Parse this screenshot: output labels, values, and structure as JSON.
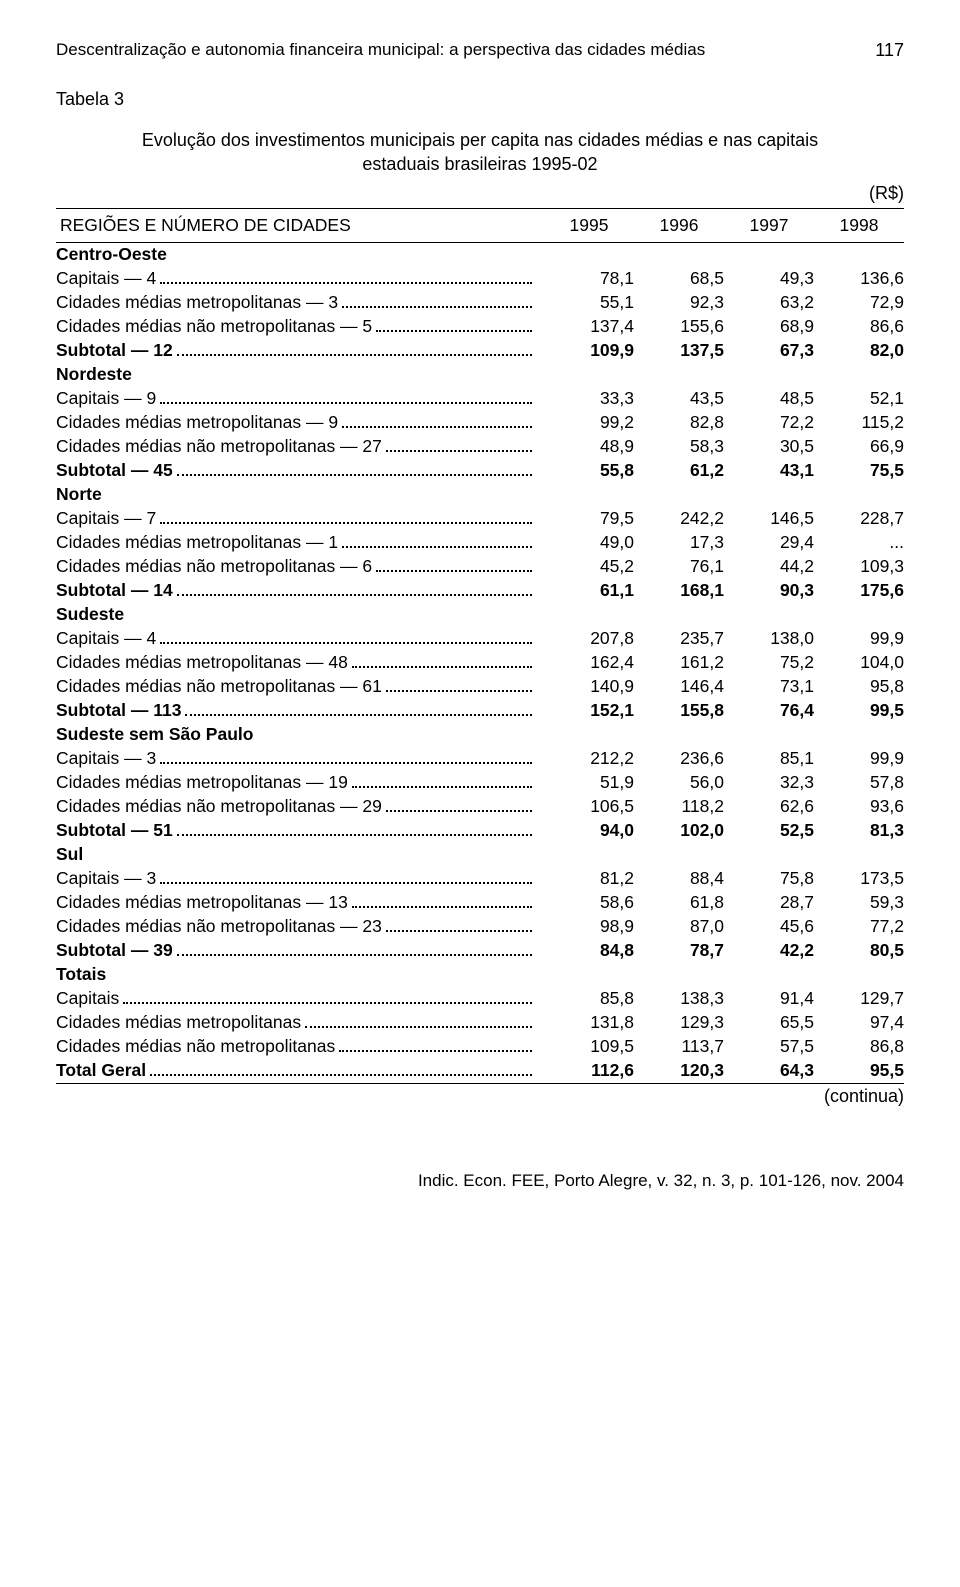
{
  "header": {
    "title": "Descentralização e autonomia financeira municipal: a perspectiva das cidades médias",
    "page_number": "117"
  },
  "table": {
    "label": "Tabela 3",
    "caption_line1": "Evolução dos investimentos municipais per capita nas cidades médias e  nas capitais",
    "caption_line2": "estaduais brasileiras 1995-02",
    "currency": "(R$)",
    "head_label": "REGIÕES E NÚMERO DE CIDADES",
    "years": [
      "1995",
      "1996",
      "1997",
      "1998"
    ],
    "col_widths": {
      "label": "auto",
      "num": "90px"
    },
    "font_size": 17.5,
    "text_color": "#000000",
    "background_color": "#ffffff",
    "rows": [
      {
        "type": "section",
        "label": "Centro-Oeste"
      },
      {
        "type": "data",
        "label": "Capitais — 4",
        "vals": [
          "78,1",
          "68,5",
          "49,3",
          "136,6"
        ]
      },
      {
        "type": "data",
        "label": "Cidades médias metropolitanas — 3",
        "vals": [
          "55,1",
          "92,3",
          "63,2",
          "72,9"
        ]
      },
      {
        "type": "data",
        "label": "Cidades médias não metropolitanas — 5",
        "vals": [
          "137,4",
          "155,6",
          "68,9",
          "86,6"
        ]
      },
      {
        "type": "bold",
        "label": "Subtotal — 12",
        "vals": [
          "109,9",
          "137,5",
          "67,3",
          "82,0"
        ]
      },
      {
        "type": "section",
        "label": "Nordeste"
      },
      {
        "type": "data",
        "label": "Capitais — 9",
        "vals": [
          "33,3",
          "43,5",
          "48,5",
          "52,1"
        ]
      },
      {
        "type": "data",
        "label": "Cidades médias metropolitanas — 9",
        "vals": [
          "99,2",
          "82,8",
          "72,2",
          "115,2"
        ]
      },
      {
        "type": "data",
        "label": "Cidades médias não metropolitanas — 27",
        "vals": [
          "48,9",
          "58,3",
          "30,5",
          "66,9"
        ]
      },
      {
        "type": "bold",
        "label": "Subtotal — 45",
        "vals": [
          "55,8",
          "61,2",
          "43,1",
          "75,5"
        ]
      },
      {
        "type": "section",
        "label": "Norte"
      },
      {
        "type": "data",
        "label": "Capitais — 7",
        "vals": [
          "79,5",
          "242,2",
          "146,5",
          "228,7"
        ]
      },
      {
        "type": "data",
        "label": "Cidades médias metropolitanas — 1",
        "vals": [
          "49,0",
          "17,3",
          "29,4",
          "..."
        ]
      },
      {
        "type": "data",
        "label": "Cidades médias não metropolitanas — 6",
        "vals": [
          "45,2",
          "76,1",
          "44,2",
          "109,3"
        ]
      },
      {
        "type": "bold",
        "label": "Subtotal — 14",
        "vals": [
          "61,1",
          "168,1",
          "90,3",
          "175,6"
        ]
      },
      {
        "type": "section",
        "label": "Sudeste"
      },
      {
        "type": "data",
        "label": "Capitais — 4",
        "vals": [
          "207,8",
          "235,7",
          "138,0",
          "99,9"
        ]
      },
      {
        "type": "data",
        "label": "Cidades médias metropolitanas — 48",
        "vals": [
          "162,4",
          "161,2",
          "75,2",
          "104,0"
        ]
      },
      {
        "type": "data",
        "label": "Cidades médias não metropolitanas — 61",
        "vals": [
          "140,9",
          "146,4",
          "73,1",
          "95,8"
        ]
      },
      {
        "type": "bold",
        "label": "Subtotal — 113",
        "vals": [
          "152,1",
          "155,8",
          "76,4",
          "99,5"
        ]
      },
      {
        "type": "section",
        "label": "Sudeste  sem São Paulo"
      },
      {
        "type": "data",
        "label": "Capitais — 3",
        "vals": [
          "212,2",
          "236,6",
          "85,1",
          "99,9"
        ]
      },
      {
        "type": "data",
        "label": "Cidades médias metropolitanas — 19",
        "vals": [
          "51,9",
          "56,0",
          "32,3",
          "57,8"
        ]
      },
      {
        "type": "data",
        "label": "Cidades médias não metropolitanas — 29",
        "vals": [
          "106,5",
          "118,2",
          "62,6",
          "93,6"
        ]
      },
      {
        "type": "bold",
        "label": "Subtotal  — 51",
        "vals": [
          "94,0",
          "102,0",
          "52,5",
          "81,3"
        ]
      },
      {
        "type": "section",
        "label": "Sul"
      },
      {
        "type": "data",
        "label": "Capitais — 3",
        "vals": [
          "81,2",
          "88,4",
          "75,8",
          "173,5"
        ]
      },
      {
        "type": "data",
        "label": "Cidades médias metropolitanas — 13",
        "vals": [
          "58,6",
          "61,8",
          "28,7",
          "59,3"
        ]
      },
      {
        "type": "data",
        "label": "Cidades médias não metropolitanas — 23",
        "vals": [
          "98,9",
          "87,0",
          "45,6",
          "77,2"
        ]
      },
      {
        "type": "bold",
        "label": "Subtotal  — 39",
        "vals": [
          "84,8",
          "78,7",
          "42,2",
          "80,5"
        ]
      },
      {
        "type": "section",
        "label": "Totais"
      },
      {
        "type": "data",
        "label": "Capitais",
        "vals": [
          "85,8",
          "138,3",
          "91,4",
          "129,7"
        ]
      },
      {
        "type": "data",
        "label": "Cidades médias metropolitanas",
        "vals": [
          "131,8",
          "129,3",
          "65,5",
          "97,4"
        ]
      },
      {
        "type": "data",
        "label": "Cidades médias não metropolitanas",
        "vals": [
          "109,5",
          "113,7",
          "57,5",
          "86,8"
        ]
      },
      {
        "type": "bold",
        "label": "Total Geral",
        "vals": [
          "112,6",
          "120,3",
          "64,3",
          "95,5"
        ],
        "last": true
      }
    ],
    "continua": "(continua)"
  },
  "footer": {
    "text": "Indic. Econ. FEE, Porto Alegre, v. 32, n. 3, p. 101-126, nov. 2004"
  }
}
